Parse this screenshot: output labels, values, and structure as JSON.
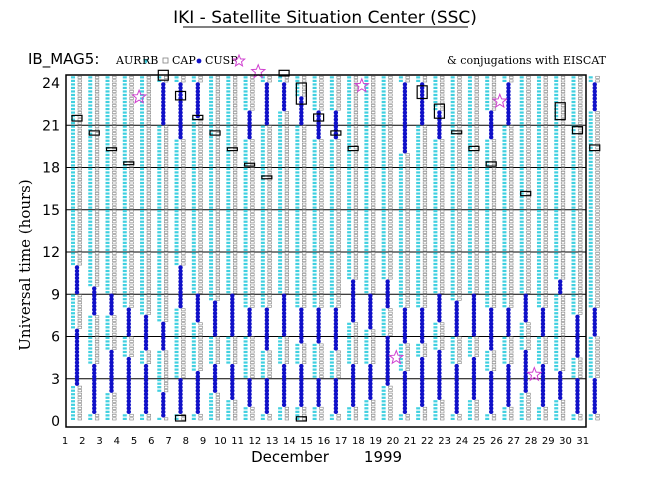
{
  "chart_data": {
    "type": "scatter",
    "title": "IKI - Satellite Situation Center (SSC)",
    "dataset_id": "IB_MAG5:",
    "conjugation_note": "& conjugations with EISCAT",
    "legend": [
      {
        "label": "AUR",
        "marker": "triangle",
        "color": "#40d0e0"
      },
      {
        "label": "RB",
        "marker": "square-open",
        "color": "#808080"
      },
      {
        "label": "CAP",
        "marker": "dot",
        "color": "#1010c8"
      },
      {
        "label": "CUSP",
        "marker": "star-open",
        "color": "#d040d0"
      }
    ],
    "xlabel": "December",
    "xlabel_year": "1999",
    "ylabel": "Universal time (hours)",
    "xlim": [
      1,
      32
    ],
    "ylim": [
      0,
      25
    ],
    "x_ticks": [
      "1",
      "2",
      "3",
      "4",
      "5",
      "6",
      "7",
      "8",
      "9",
      "10",
      "11",
      "12",
      "13",
      "14",
      "15",
      "16",
      "17",
      "18",
      "19",
      "20",
      "21",
      "22",
      "23",
      "24",
      "25",
      "26",
      "27",
      "28",
      "29",
      "30",
      "31"
    ],
    "y_ticks": [
      "0",
      "3",
      "6",
      "9",
      "12",
      "15",
      "18",
      "21",
      "24"
    ],
    "grid": true,
    "colors": {
      "aur": "#40d0e0",
      "rb": "#808080",
      "cap": "#1010c8",
      "cusp": "#d040d0",
      "axis": "#000000"
    },
    "boxes": [
      {
        "day": 1,
        "start": 21.3,
        "end": 21.7
      },
      {
        "day": 2,
        "start": 20.3,
        "end": 20.6
      },
      {
        "day": 3,
        "start": 19.2,
        "end": 19.4
      },
      {
        "day": 4,
        "start": 18.2,
        "end": 18.4
      },
      {
        "day": 6,
        "start": 24.2,
        "end": 24.9
      },
      {
        "day": 7,
        "start": 22.8,
        "end": 23.4
      },
      {
        "day": 7,
        "start": 0.0,
        "end": 0.4
      },
      {
        "day": 8,
        "start": 21.4,
        "end": 21.7
      },
      {
        "day": 9,
        "start": 20.3,
        "end": 20.6
      },
      {
        "day": 10,
        "start": 19.2,
        "end": 19.4
      },
      {
        "day": 11,
        "start": 18.1,
        "end": 18.3
      },
      {
        "day": 12,
        "start": 17.2,
        "end": 17.4
      },
      {
        "day": 13,
        "start": 24.5,
        "end": 24.9
      },
      {
        "day": 14,
        "start": 22.5,
        "end": 24.0
      },
      {
        "day": 14,
        "start": 0.0,
        "end": 0.3
      },
      {
        "day": 15,
        "start": 21.3,
        "end": 21.8
      },
      {
        "day": 16,
        "start": 20.3,
        "end": 20.6
      },
      {
        "day": 17,
        "start": 19.2,
        "end": 19.5
      },
      {
        "day": 21,
        "start": 22.9,
        "end": 23.8
      },
      {
        "day": 22,
        "start": 21.5,
        "end": 22.5
      },
      {
        "day": 23,
        "start": 20.4,
        "end": 20.6
      },
      {
        "day": 24,
        "start": 19.2,
        "end": 19.5
      },
      {
        "day": 25,
        "start": 18.1,
        "end": 18.4
      },
      {
        "day": 27,
        "start": 16.0,
        "end": 16.3
      },
      {
        "day": 29,
        "start": 21.4,
        "end": 22.6
      },
      {
        "day": 30,
        "start": 20.4,
        "end": 20.9
      },
      {
        "day": 31,
        "start": 19.2,
        "end": 19.6
      }
    ],
    "cusp_points": [
      {
        "x": 4.6,
        "y": 23.0
      },
      {
        "x": 17.5,
        "y": 23.8
      },
      {
        "x": 25.5,
        "y": 22.7
      },
      {
        "x": 19.5,
        "y": 4.5
      },
      {
        "x": 27.5,
        "y": 3.3
      },
      {
        "x": 11.5,
        "y": 24.8
      }
    ],
    "cap_ranges": [
      {
        "day": 1,
        "ranges": [
          [
            2.5,
            6.5
          ],
          [
            9.0,
            11.0
          ]
        ]
      },
      {
        "day": 2,
        "ranges": [
          [
            0.5,
            4.0
          ],
          [
            7.5,
            9.5
          ]
        ]
      },
      {
        "day": 3,
        "ranges": [
          [
            2.0,
            5.0
          ],
          [
            7.5,
            9.0
          ]
        ]
      },
      {
        "day": 4,
        "ranges": [
          [
            0.5,
            4.5
          ],
          [
            6.0,
            8.0
          ]
        ]
      },
      {
        "day": 5,
        "ranges": [
          [
            0.5,
            4.0
          ],
          [
            5.0,
            7.5
          ]
        ]
      },
      {
        "day": 6,
        "ranges": [
          [
            0.2,
            2.0
          ],
          [
            5.0,
            7.0
          ],
          [
            21.0,
            24.0
          ]
        ]
      },
      {
        "day": 7,
        "ranges": [
          [
            0.5,
            3.0
          ],
          [
            8.0,
            11.0
          ],
          [
            20.0,
            24.0
          ]
        ]
      },
      {
        "day": 8,
        "ranges": [
          [
            0.5,
            3.5
          ],
          [
            7.0,
            9.0
          ],
          [
            21.5,
            24.0
          ]
        ]
      },
      {
        "day": 9,
        "ranges": [
          [
            2.0,
            4.0
          ],
          [
            6.0,
            8.5
          ]
        ]
      },
      {
        "day": 10,
        "ranges": [
          [
            1.5,
            4.0
          ],
          [
            6.0,
            9.0
          ]
        ]
      },
      {
        "day": 11,
        "ranges": [
          [
            1.0,
            3.0
          ],
          [
            6.0,
            8.0
          ],
          [
            20.0,
            22.0
          ]
        ]
      },
      {
        "day": 12,
        "ranges": [
          [
            0.5,
            3.0
          ],
          [
            5.0,
            8.0
          ],
          [
            21.0,
            24.0
          ]
        ]
      },
      {
        "day": 13,
        "ranges": [
          [
            1.0,
            4.0
          ],
          [
            6.0,
            9.0
          ],
          [
            22.0,
            24.0
          ]
        ]
      },
      {
        "day": 14,
        "ranges": [
          [
            1.0,
            4.0
          ],
          [
            5.5,
            8.0
          ],
          [
            21.0,
            23.0
          ]
        ]
      },
      {
        "day": 15,
        "ranges": [
          [
            1.0,
            3.0
          ],
          [
            5.5,
            8.0
          ],
          [
            20.0,
            22.0
          ]
        ]
      },
      {
        "day": 16,
        "ranges": [
          [
            0.5,
            3.0
          ],
          [
            5.0,
            8.0
          ],
          [
            20.0,
            22.0
          ]
        ]
      },
      {
        "day": 17,
        "ranges": [
          [
            1.0,
            4.0
          ],
          [
            7.0,
            10.0
          ]
        ]
      },
      {
        "day": 18,
        "ranges": [
          [
            1.5,
            4.0
          ],
          [
            6.5,
            9.0
          ]
        ]
      },
      {
        "day": 19,
        "ranges": [
          [
            2.5,
            6.0
          ],
          [
            8.0,
            10.0
          ]
        ]
      },
      {
        "day": 20,
        "ranges": [
          [
            0.5,
            3.5
          ],
          [
            5.5,
            8.0
          ],
          [
            19.0,
            24.0
          ]
        ]
      },
      {
        "day": 21,
        "ranges": [
          [
            1.0,
            4.5
          ],
          [
            5.5,
            8.0
          ],
          [
            21.0,
            24.0
          ]
        ]
      },
      {
        "day": 22,
        "ranges": [
          [
            1.5,
            5.0
          ],
          [
            7.0,
            9.0
          ],
          [
            20.0,
            22.0
          ]
        ]
      },
      {
        "day": 23,
        "ranges": [
          [
            0.5,
            4.0
          ],
          [
            6.0,
            8.5
          ]
        ]
      },
      {
        "day": 24,
        "ranges": [
          [
            1.5,
            4.5
          ],
          [
            6.0,
            9.0
          ]
        ]
      },
      {
        "day": 25,
        "ranges": [
          [
            0.5,
            3.5
          ],
          [
            5.0,
            8.0
          ],
          [
            20.0,
            22.0
          ]
        ]
      },
      {
        "day": 26,
        "ranges": [
          [
            1.0,
            4.0
          ],
          [
            6.0,
            8.0
          ],
          [
            21.0,
            24.0
          ]
        ]
      },
      {
        "day": 27,
        "ranges": [
          [
            2.0,
            5.0
          ],
          [
            7.0,
            9.0
          ]
        ]
      },
      {
        "day": 28,
        "ranges": [
          [
            1.0,
            4.0
          ],
          [
            6.0,
            8.0
          ]
        ]
      },
      {
        "day": 29,
        "ranges": [
          [
            1.5,
            3.5
          ],
          [
            9.0,
            10.0
          ]
        ]
      },
      {
        "day": 30,
        "ranges": [
          [
            0.5,
            3.0
          ],
          [
            4.5,
            7.5
          ]
        ]
      },
      {
        "day": 31,
        "ranges": [
          [
            0.5,
            3.0
          ],
          [
            6.0,
            8.0
          ],
          [
            22.0,
            24.0
          ]
        ]
      }
    ]
  }
}
